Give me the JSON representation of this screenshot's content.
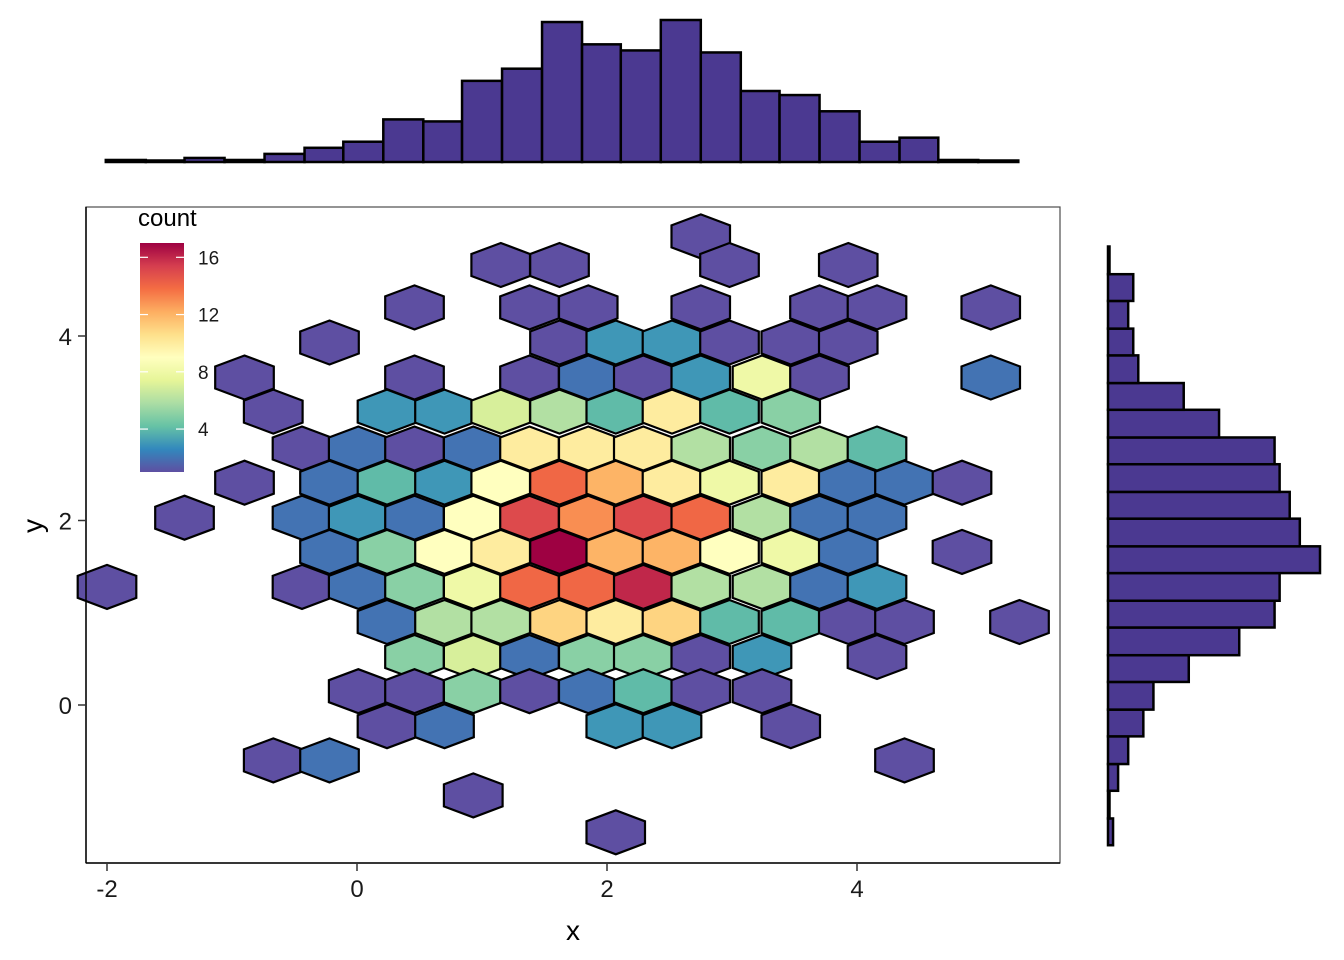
{
  "chart_data": {
    "type": "hexbin",
    "xlabel": "x",
    "ylabel": "y",
    "xlim": [
      -2.2,
      5.6
    ],
    "ylim": [
      -1.7,
      5.3
    ],
    "x_ticks": [
      -2,
      0,
      2,
      4
    ],
    "y_ticks": [
      0,
      2,
      4
    ],
    "grid": false,
    "legend": {
      "title": "count",
      "position": "top-left",
      "range": [
        1,
        17
      ],
      "ticks": [
        4,
        8,
        12,
        16
      ],
      "colors": [
        "#5E4FA2",
        "#3288BD",
        "#66C2A5",
        "#ABDDA4",
        "#E6F598",
        "#FFFFBF",
        "#FEE08B",
        "#FDAE61",
        "#F46D43",
        "#D53E4F",
        "#9E0142"
      ]
    },
    "bin_style": {
      "stroke": "#000000"
    },
    "hex_bins": [
      {
        "x": 2.75,
        "y": 5.08,
        "count": 1
      },
      {
        "x": 1.15,
        "y": 4.77,
        "count": 1
      },
      {
        "x": 1.62,
        "y": 4.77,
        "count": 1
      },
      {
        "x": 2.98,
        "y": 4.77,
        "count": 1
      },
      {
        "x": 3.93,
        "y": 4.77,
        "count": 1
      },
      {
        "x": 0.46,
        "y": 4.31,
        "count": 1
      },
      {
        "x": 1.38,
        "y": 4.31,
        "count": 1
      },
      {
        "x": 1.85,
        "y": 4.31,
        "count": 1
      },
      {
        "x": 2.75,
        "y": 4.31,
        "count": 1
      },
      {
        "x": 3.7,
        "y": 4.31,
        "count": 1
      },
      {
        "x": 4.16,
        "y": 4.31,
        "count": 1
      },
      {
        "x": 5.07,
        "y": 4.31,
        "count": 1
      },
      {
        "x": -0.22,
        "y": 3.93,
        "count": 1
      },
      {
        "x": 1.62,
        "y": 3.93,
        "count": 1
      },
      {
        "x": 2.07,
        "y": 3.93,
        "count": 3
      },
      {
        "x": 2.52,
        "y": 3.93,
        "count": 3
      },
      {
        "x": 2.98,
        "y": 3.93,
        "count": 1
      },
      {
        "x": 3.47,
        "y": 3.93,
        "count": 1
      },
      {
        "x": 3.93,
        "y": 3.93,
        "count": 1
      },
      {
        "x": -0.9,
        "y": 3.55,
        "count": 1
      },
      {
        "x": 0.46,
        "y": 3.55,
        "count": 1
      },
      {
        "x": 1.38,
        "y": 3.55,
        "count": 1
      },
      {
        "x": 1.85,
        "y": 3.55,
        "count": 2
      },
      {
        "x": 2.29,
        "y": 3.55,
        "count": 1
      },
      {
        "x": 2.75,
        "y": 3.55,
        "count": 3
      },
      {
        "x": 3.24,
        "y": 3.55,
        "count": 8
      },
      {
        "x": 3.7,
        "y": 3.55,
        "count": 1
      },
      {
        "x": 5.07,
        "y": 3.55,
        "count": 2
      },
      {
        "x": -0.67,
        "y": 3.18,
        "count": 1
      },
      {
        "x": 0.24,
        "y": 3.18,
        "count": 3
      },
      {
        "x": 0.7,
        "y": 3.18,
        "count": 3
      },
      {
        "x": 1.15,
        "y": 3.18,
        "count": 7
      },
      {
        "x": 1.62,
        "y": 3.18,
        "count": 6
      },
      {
        "x": 2.07,
        "y": 3.18,
        "count": 4
      },
      {
        "x": 2.52,
        "y": 3.18,
        "count": 10
      },
      {
        "x": 2.98,
        "y": 3.18,
        "count": 4
      },
      {
        "x": 3.47,
        "y": 3.18,
        "count": 5
      },
      {
        "x": -0.44,
        "y": 2.78,
        "count": 1
      },
      {
        "x": 0.01,
        "y": 2.78,
        "count": 2
      },
      {
        "x": 0.46,
        "y": 2.78,
        "count": 1
      },
      {
        "x": 0.93,
        "y": 2.78,
        "count": 2
      },
      {
        "x": 1.38,
        "y": 2.78,
        "count": 10
      },
      {
        "x": 1.85,
        "y": 2.78,
        "count": 10
      },
      {
        "x": 2.29,
        "y": 2.78,
        "count": 10
      },
      {
        "x": 2.75,
        "y": 2.78,
        "count": 6
      },
      {
        "x": 3.24,
        "y": 2.78,
        "count": 5
      },
      {
        "x": 3.7,
        "y": 2.78,
        "count": 6
      },
      {
        "x": 4.16,
        "y": 2.78,
        "count": 4
      },
      {
        "x": -0.9,
        "y": 2.41,
        "count": 1
      },
      {
        "x": -0.22,
        "y": 2.41,
        "count": 2
      },
      {
        "x": 0.24,
        "y": 2.41,
        "count": 4
      },
      {
        "x": 0.7,
        "y": 2.41,
        "count": 3
      },
      {
        "x": 1.15,
        "y": 2.41,
        "count": 9
      },
      {
        "x": 1.62,
        "y": 2.41,
        "count": 14
      },
      {
        "x": 2.07,
        "y": 2.41,
        "count": 12
      },
      {
        "x": 2.52,
        "y": 2.41,
        "count": 10
      },
      {
        "x": 2.98,
        "y": 2.41,
        "count": 8
      },
      {
        "x": 3.47,
        "y": 2.41,
        "count": 10
      },
      {
        "x": 3.93,
        "y": 2.41,
        "count": 2
      },
      {
        "x": 4.38,
        "y": 2.41,
        "count": 2
      },
      {
        "x": 4.84,
        "y": 2.41,
        "count": 1
      },
      {
        "x": -1.38,
        "y": 2.03,
        "count": 1
      },
      {
        "x": -0.44,
        "y": 2.03,
        "count": 2
      },
      {
        "x": 0.01,
        "y": 2.03,
        "count": 3
      },
      {
        "x": 0.46,
        "y": 2.03,
        "count": 2
      },
      {
        "x": 0.93,
        "y": 2.03,
        "count": 9
      },
      {
        "x": 1.38,
        "y": 2.03,
        "count": 15
      },
      {
        "x": 1.85,
        "y": 2.03,
        "count": 13
      },
      {
        "x": 2.29,
        "y": 2.03,
        "count": 15
      },
      {
        "x": 2.75,
        "y": 2.03,
        "count": 14
      },
      {
        "x": 3.24,
        "y": 2.03,
        "count": 6
      },
      {
        "x": 3.7,
        "y": 2.03,
        "count": 2
      },
      {
        "x": 4.16,
        "y": 2.03,
        "count": 2
      },
      {
        "x": -0.22,
        "y": 1.66,
        "count": 2
      },
      {
        "x": 0.24,
        "y": 1.66,
        "count": 5
      },
      {
        "x": 0.7,
        "y": 1.66,
        "count": 9
      },
      {
        "x": 1.15,
        "y": 1.66,
        "count": 10
      },
      {
        "x": 1.62,
        "y": 1.66,
        "count": 17
      },
      {
        "x": 2.07,
        "y": 1.66,
        "count": 12
      },
      {
        "x": 2.52,
        "y": 1.66,
        "count": 12
      },
      {
        "x": 2.98,
        "y": 1.66,
        "count": 9
      },
      {
        "x": 3.47,
        "y": 1.66,
        "count": 8
      },
      {
        "x": 3.93,
        "y": 1.66,
        "count": 2
      },
      {
        "x": 4.84,
        "y": 1.66,
        "count": 1
      },
      {
        "x": -2.0,
        "y": 1.28,
        "count": 1
      },
      {
        "x": -0.44,
        "y": 1.28,
        "count": 1
      },
      {
        "x": 0.01,
        "y": 1.28,
        "count": 2
      },
      {
        "x": 0.46,
        "y": 1.28,
        "count": 5
      },
      {
        "x": 0.93,
        "y": 1.28,
        "count": 8
      },
      {
        "x": 1.38,
        "y": 1.28,
        "count": 14
      },
      {
        "x": 1.85,
        "y": 1.28,
        "count": 14
      },
      {
        "x": 2.29,
        "y": 1.28,
        "count": 16
      },
      {
        "x": 2.75,
        "y": 1.28,
        "count": 6
      },
      {
        "x": 3.24,
        "y": 1.28,
        "count": 6
      },
      {
        "x": 3.7,
        "y": 1.28,
        "count": 2
      },
      {
        "x": 4.16,
        "y": 1.28,
        "count": 3
      },
      {
        "x": 0.24,
        "y": 0.9,
        "count": 2
      },
      {
        "x": 0.7,
        "y": 0.9,
        "count": 6
      },
      {
        "x": 1.15,
        "y": 0.9,
        "count": 6
      },
      {
        "x": 1.62,
        "y": 0.9,
        "count": 11
      },
      {
        "x": 2.07,
        "y": 0.9,
        "count": 10
      },
      {
        "x": 2.52,
        "y": 0.9,
        "count": 11
      },
      {
        "x": 2.98,
        "y": 0.9,
        "count": 4
      },
      {
        "x": 3.47,
        "y": 0.9,
        "count": 4
      },
      {
        "x": 3.93,
        "y": 0.9,
        "count": 1
      },
      {
        "x": 4.38,
        "y": 0.9,
        "count": 1
      },
      {
        "x": 5.3,
        "y": 0.9,
        "count": 1
      },
      {
        "x": 0.46,
        "y": 0.52,
        "count": 5
      },
      {
        "x": 0.93,
        "y": 0.52,
        "count": 7
      },
      {
        "x": 1.38,
        "y": 0.52,
        "count": 2
      },
      {
        "x": 1.85,
        "y": 0.52,
        "count": 5
      },
      {
        "x": 2.29,
        "y": 0.52,
        "count": 5
      },
      {
        "x": 2.75,
        "y": 0.52,
        "count": 1
      },
      {
        "x": 3.24,
        "y": 0.52,
        "count": 3
      },
      {
        "x": 4.16,
        "y": 0.52,
        "count": 1
      },
      {
        "x": 0.01,
        "y": 0.15,
        "count": 1
      },
      {
        "x": 0.46,
        "y": 0.15,
        "count": 1
      },
      {
        "x": 0.93,
        "y": 0.15,
        "count": 5
      },
      {
        "x": 1.38,
        "y": 0.15,
        "count": 1
      },
      {
        "x": 1.85,
        "y": 0.15,
        "count": 2
      },
      {
        "x": 2.29,
        "y": 0.15,
        "count": 4
      },
      {
        "x": 2.75,
        "y": 0.15,
        "count": 1
      },
      {
        "x": 3.24,
        "y": 0.15,
        "count": 1
      },
      {
        "x": 0.24,
        "y": -0.23,
        "count": 1
      },
      {
        "x": 0.7,
        "y": -0.23,
        "count": 2
      },
      {
        "x": 2.07,
        "y": -0.23,
        "count": 3
      },
      {
        "x": 2.52,
        "y": -0.23,
        "count": 3
      },
      {
        "x": 3.47,
        "y": -0.23,
        "count": 1
      },
      {
        "x": -0.67,
        "y": -0.6,
        "count": 1
      },
      {
        "x": -0.22,
        "y": -0.6,
        "count": 2
      },
      {
        "x": 4.38,
        "y": -0.6,
        "count": 1
      },
      {
        "x": 0.93,
        "y": -0.98,
        "count": 1
      },
      {
        "x": 2.07,
        "y": -1.38,
        "count": 1
      }
    ],
    "marginal_x": {
      "type": "histogram",
      "fill": "#4B3991",
      "bin_edges": [
        -2.0,
        -1.68,
        -1.37,
        -1.05,
        -0.73,
        -0.41,
        -0.1,
        0.22,
        0.54,
        0.85,
        1.17,
        1.49,
        1.81,
        2.12,
        2.44,
        2.76,
        3.08,
        3.39,
        3.71,
        4.03,
        4.35,
        4.66,
        4.98,
        5.3
      ],
      "counts": [
        1,
        0,
        2,
        1,
        4,
        7,
        10,
        21,
        20,
        40,
        46,
        69,
        58,
        55,
        70,
        54,
        35,
        33,
        25,
        10,
        12,
        1,
        0,
        3
      ]
    },
    "marginal_y": {
      "type": "histogram",
      "fill": "#4B3991",
      "bin_edges": [
        -1.52,
        -1.23,
        -0.93,
        -0.64,
        -0.34,
        -0.05,
        0.25,
        0.54,
        0.84,
        1.13,
        1.43,
        1.72,
        2.02,
        2.31,
        2.61,
        2.9,
        3.2,
        3.49,
        3.79,
        4.08,
        4.38,
        4.67,
        4.97
      ],
      "counts": [
        1,
        0,
        2,
        4,
        7,
        9,
        16,
        26,
        33,
        34,
        42,
        38,
        36,
        34,
        33,
        22,
        15,
        6,
        5,
        4,
        5,
        0,
        1
      ]
    }
  }
}
